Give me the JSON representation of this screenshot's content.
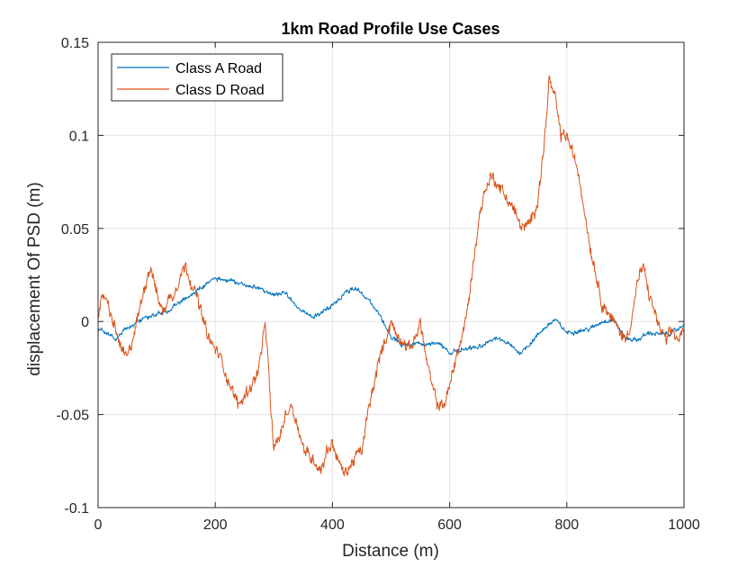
{
  "chart_data": {
    "type": "line",
    "title": "1km Road Profile Use Cases",
    "xlabel": "Distance (m)",
    "ylabel": "displacement Of PSD (m)",
    "xlim": [
      0,
      1000
    ],
    "ylim": [
      -0.1,
      0.15
    ],
    "xticks": [
      0,
      200,
      400,
      600,
      800,
      1000
    ],
    "xtick_labels": [
      "0",
      "200",
      "400",
      "600",
      "800",
      "1000"
    ],
    "yticks": [
      -0.1,
      -0.05,
      0,
      0.05,
      0.1,
      0.15
    ],
    "ytick_labels": [
      "-0.1",
      "-0.05",
      "0",
      "0.05",
      "0.1",
      "0.15"
    ],
    "grid": true,
    "legend_position": "top-left",
    "series": [
      {
        "name": "Class A Road",
        "color": "#0072BD",
        "noise": 0.0015,
        "x": [
          0,
          20,
          30,
          40,
          60,
          80,
          100,
          120,
          140,
          160,
          180,
          200,
          220,
          240,
          260,
          280,
          300,
          320,
          340,
          360,
          380,
          400,
          420,
          440,
          460,
          480,
          500,
          520,
          540,
          560,
          580,
          600,
          620,
          640,
          660,
          680,
          700,
          720,
          740,
          760,
          780,
          800,
          820,
          840,
          860,
          880,
          900,
          920,
          940,
          960,
          980,
          1000
        ],
        "y": [
          -0.004,
          -0.007,
          -0.01,
          -0.006,
          -0.002,
          0.002,
          0.004,
          0.006,
          0.01,
          0.015,
          0.019,
          0.023,
          0.022,
          0.021,
          0.019,
          0.017,
          0.014,
          0.015,
          0.008,
          0.003,
          0.004,
          0.009,
          0.015,
          0.018,
          0.012,
          0.004,
          -0.008,
          -0.013,
          -0.012,
          -0.013,
          -0.011,
          -0.017,
          -0.015,
          -0.014,
          -0.012,
          -0.009,
          -0.012,
          -0.017,
          -0.011,
          -0.004,
          0.001,
          -0.006,
          -0.005,
          -0.004,
          0.0,
          0.001,
          -0.009,
          -0.01,
          -0.006,
          -0.007,
          -0.006,
          -0.002
        ]
      },
      {
        "name": "Class D Road",
        "color": "#D95319",
        "noise": 0.004,
        "x": [
          0,
          10,
          20,
          30,
          40,
          50,
          60,
          70,
          80,
          90,
          100,
          110,
          120,
          130,
          140,
          150,
          160,
          170,
          180,
          190,
          200,
          210,
          220,
          230,
          240,
          250,
          260,
          270,
          280,
          285,
          290,
          295,
          300,
          310,
          320,
          330,
          340,
          350,
          360,
          370,
          380,
          390,
          400,
          410,
          420,
          430,
          440,
          450,
          460,
          470,
          480,
          490,
          500,
          510,
          520,
          530,
          540,
          550,
          560,
          570,
          580,
          590,
          600,
          610,
          620,
          630,
          640,
          650,
          660,
          670,
          680,
          690,
          700,
          710,
          720,
          730,
          740,
          750,
          760,
          770,
          780,
          790,
          800,
          810,
          820,
          830,
          840,
          850,
          860,
          870,
          880,
          890,
          900,
          910,
          920,
          930,
          940,
          950,
          960,
          970,
          980,
          990,
          1000
        ],
        "y": [
          0.005,
          0.015,
          0.005,
          -0.005,
          -0.015,
          -0.02,
          -0.008,
          0.005,
          0.02,
          0.03,
          0.015,
          0.005,
          0.012,
          0.015,
          0.025,
          0.03,
          0.02,
          0.012,
          0.0,
          -0.01,
          -0.015,
          -0.02,
          -0.03,
          -0.038,
          -0.045,
          -0.04,
          -0.035,
          -0.03,
          -0.015,
          0.0,
          -0.02,
          -0.05,
          -0.068,
          -0.062,
          -0.05,
          -0.045,
          -0.055,
          -0.068,
          -0.072,
          -0.075,
          -0.08,
          -0.07,
          -0.065,
          -0.075,
          -0.082,
          -0.078,
          -0.072,
          -0.07,
          -0.05,
          -0.035,
          -0.02,
          -0.01,
          0.0,
          -0.008,
          -0.01,
          -0.015,
          -0.01,
          0.0,
          -0.02,
          -0.035,
          -0.045,
          -0.045,
          -0.035,
          -0.02,
          -0.01,
          0.005,
          0.03,
          0.055,
          0.07,
          0.078,
          0.075,
          0.07,
          0.065,
          0.06,
          0.052,
          0.05,
          0.055,
          0.065,
          0.09,
          0.13,
          0.12,
          0.1,
          0.1,
          0.09,
          0.08,
          0.06,
          0.04,
          0.025,
          0.01,
          0.005,
          0.0,
          -0.005,
          -0.01,
          0.0,
          0.02,
          0.03,
          0.015,
          0.005,
          -0.005,
          -0.01,
          -0.005,
          -0.01,
          -0.005
        ]
      }
    ]
  }
}
